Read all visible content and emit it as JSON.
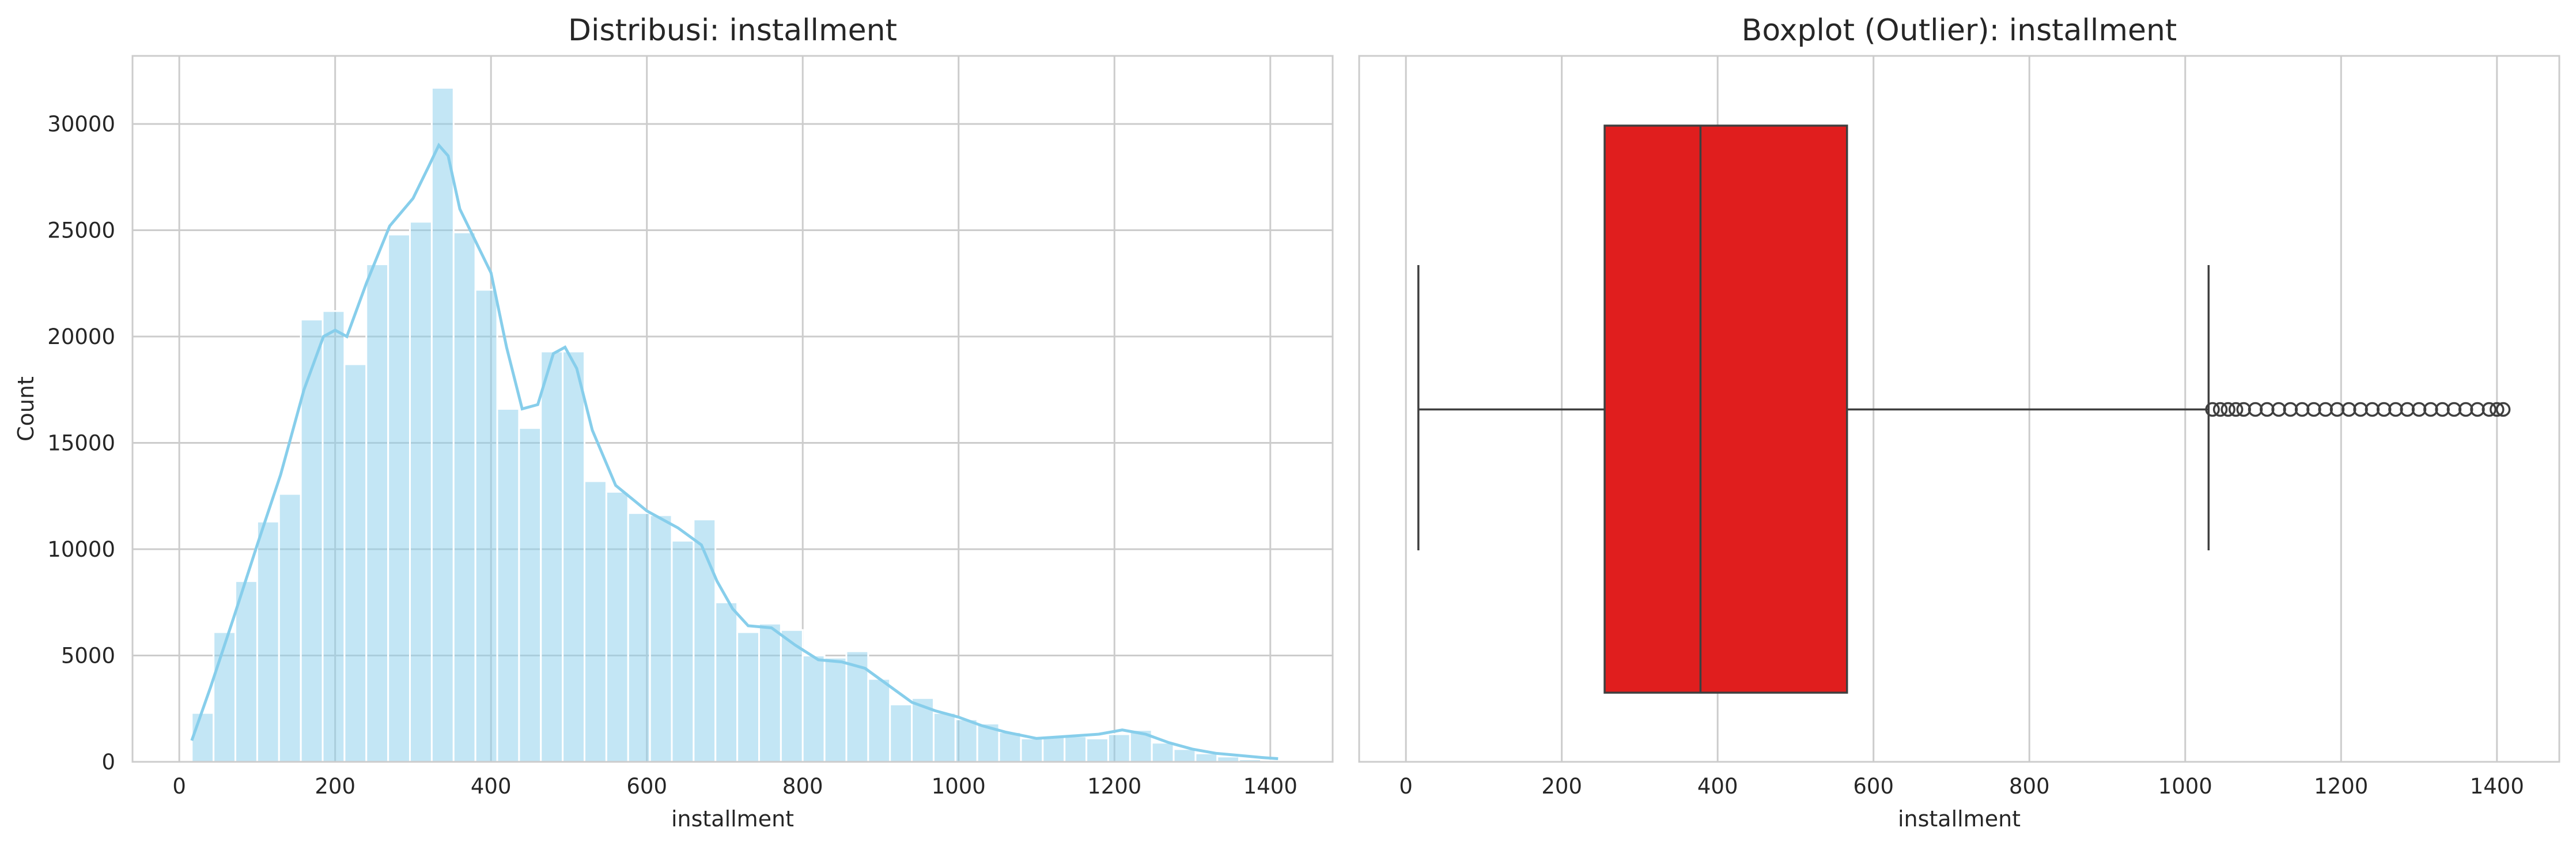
{
  "chart_data": [
    {
      "type": "histogram",
      "title": "Distribusi: installment",
      "xlabel": "installment",
      "ylabel": "Count",
      "xlim": [
        -60,
        1480
      ],
      "ylim": [
        0,
        33200
      ],
      "xticks": [
        0,
        200,
        400,
        600,
        800,
        1000,
        1200,
        1400
      ],
      "yticks": [
        0,
        5000,
        10000,
        15000,
        20000,
        25000,
        30000
      ],
      "grid": true,
      "bar_color": "#87ceeb",
      "kde_color": "#87ceeb",
      "bin_width": 28,
      "bin_edges_start": 16,
      "counts": [
        2300,
        6100,
        8500,
        11300,
        12600,
        20800,
        21200,
        18700,
        23400,
        24800,
        25400,
        31700,
        24900,
        22200,
        16600,
        15700,
        19300,
        19300,
        13200,
        12700,
        11700,
        11600,
        10400,
        11400,
        7500,
        6100,
        6500,
        6200,
        5000,
        4900,
        5200,
        3900,
        2700,
        3000,
        2300,
        2000,
        1800,
        1400,
        1100,
        1200,
        1200,
        1100,
        1300,
        1500,
        900,
        600,
        400,
        250,
        120,
        60
      ],
      "kde": {
        "x": [
          16,
          40,
          70,
          100,
          130,
          160,
          185,
          200,
          215,
          240,
          270,
          300,
          320,
          333,
          345,
          360,
          380,
          400,
          420,
          440,
          460,
          480,
          495,
          510,
          530,
          560,
          600,
          640,
          670,
          690,
          710,
          730,
          760,
          790,
          820,
          850,
          880,
          910,
          940,
          970,
          1000,
          1030,
          1060,
          1100,
          1140,
          1180,
          1210,
          1240,
          1270,
          1300,
          1330,
          1360,
          1390,
          1410
        ],
        "y": [
          1000,
          3500,
          6800,
          10200,
          13500,
          17500,
          20000,
          20300,
          20000,
          22500,
          25200,
          26500,
          28000,
          29000,
          28500,
          26000,
          24500,
          23000,
          19500,
          16600,
          16800,
          19200,
          19500,
          18500,
          15600,
          13000,
          11800,
          11000,
          10200,
          8500,
          7200,
          6400,
          6300,
          5500,
          4800,
          4700,
          4400,
          3600,
          2800,
          2400,
          2100,
          1700,
          1400,
          1100,
          1200,
          1300,
          1500,
          1300,
          900,
          600,
          400,
          300,
          200,
          150
        ]
      }
    },
    {
      "type": "boxplot",
      "title": "Boxplot (Outlier): installment",
      "xlabel": "installment",
      "xlim": [
        -60,
        1480
      ],
      "xticks": [
        0,
        200,
        400,
        600,
        800,
        1000,
        1200,
        1400
      ],
      "grid": true,
      "box_color": "#e01e1e",
      "line_color": "#3f3f3f",
      "whisker_low": 16,
      "q1": 255,
      "median": 378,
      "q3": 566,
      "whisker_high": 1030,
      "outliers": [
        1035,
        1045,
        1055,
        1065,
        1075,
        1090,
        1105,
        1120,
        1135,
        1150,
        1165,
        1180,
        1195,
        1210,
        1225,
        1240,
        1255,
        1270,
        1285,
        1300,
        1315,
        1330,
        1345,
        1360,
        1375,
        1390,
        1400,
        1408
      ]
    }
  ]
}
